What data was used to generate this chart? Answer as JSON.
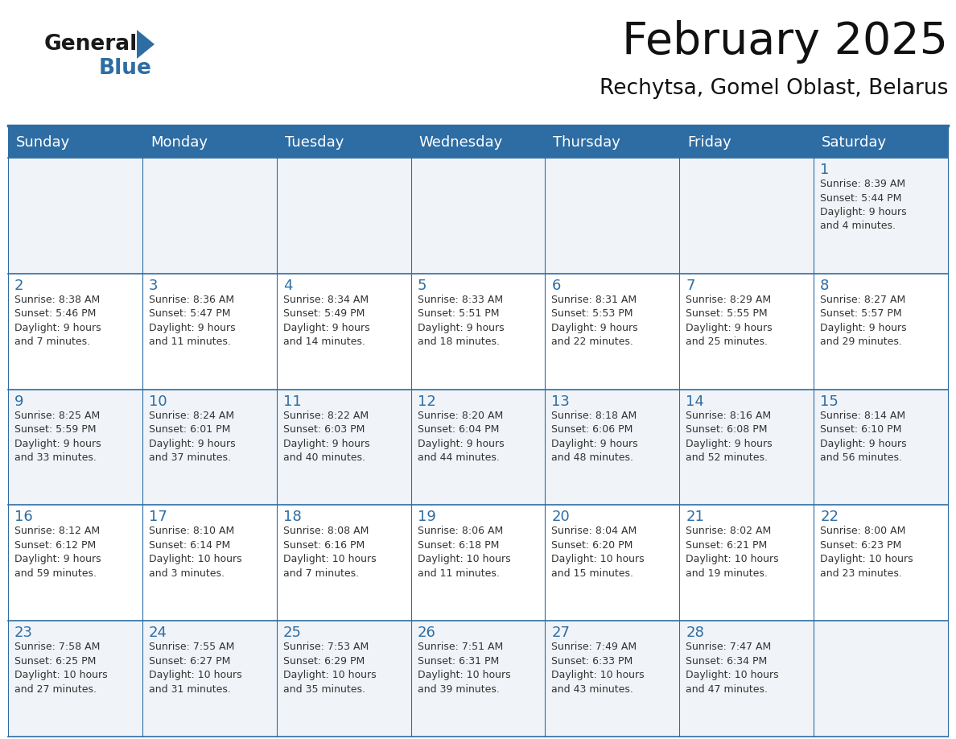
{
  "title": "February 2025",
  "subtitle": "Rechytsa, Gomel Oblast, Belarus",
  "days_of_week": [
    "Sunday",
    "Monday",
    "Tuesday",
    "Wednesday",
    "Thursday",
    "Friday",
    "Saturday"
  ],
  "header_bg": "#2E6DA4",
  "header_text": "#FFFFFF",
  "cell_bg_odd": "#F0F4F8",
  "cell_bg_even": "#FFFFFF",
  "border_color": "#2E6DA4",
  "title_color": "#1a1a1a",
  "subtitle_color": "#1a1a1a",
  "day_number_color": "#2E6DA4",
  "cell_text_color": "#333333",
  "calendar_data": [
    [
      null,
      null,
      null,
      null,
      null,
      null,
      {
        "day": 1,
        "sunrise": "8:39 AM",
        "sunset": "5:44 PM",
        "daylight": "9 hours",
        "daylight2": "and 4 minutes."
      }
    ],
    [
      {
        "day": 2,
        "sunrise": "8:38 AM",
        "sunset": "5:46 PM",
        "daylight": "9 hours",
        "daylight2": "and 7 minutes."
      },
      {
        "day": 3,
        "sunrise": "8:36 AM",
        "sunset": "5:47 PM",
        "daylight": "9 hours",
        "daylight2": "and 11 minutes."
      },
      {
        "day": 4,
        "sunrise": "8:34 AM",
        "sunset": "5:49 PM",
        "daylight": "9 hours",
        "daylight2": "and 14 minutes."
      },
      {
        "day": 5,
        "sunrise": "8:33 AM",
        "sunset": "5:51 PM",
        "daylight": "9 hours",
        "daylight2": "and 18 minutes."
      },
      {
        "day": 6,
        "sunrise": "8:31 AM",
        "sunset": "5:53 PM",
        "daylight": "9 hours",
        "daylight2": "and 22 minutes."
      },
      {
        "day": 7,
        "sunrise": "8:29 AM",
        "sunset": "5:55 PM",
        "daylight": "9 hours",
        "daylight2": "and 25 minutes."
      },
      {
        "day": 8,
        "sunrise": "8:27 AM",
        "sunset": "5:57 PM",
        "daylight": "9 hours",
        "daylight2": "and 29 minutes."
      }
    ],
    [
      {
        "day": 9,
        "sunrise": "8:25 AM",
        "sunset": "5:59 PM",
        "daylight": "9 hours",
        "daylight2": "and 33 minutes."
      },
      {
        "day": 10,
        "sunrise": "8:24 AM",
        "sunset": "6:01 PM",
        "daylight": "9 hours",
        "daylight2": "and 37 minutes."
      },
      {
        "day": 11,
        "sunrise": "8:22 AM",
        "sunset": "6:03 PM",
        "daylight": "9 hours",
        "daylight2": "and 40 minutes."
      },
      {
        "day": 12,
        "sunrise": "8:20 AM",
        "sunset": "6:04 PM",
        "daylight": "9 hours",
        "daylight2": "and 44 minutes."
      },
      {
        "day": 13,
        "sunrise": "8:18 AM",
        "sunset": "6:06 PM",
        "daylight": "9 hours",
        "daylight2": "and 48 minutes."
      },
      {
        "day": 14,
        "sunrise": "8:16 AM",
        "sunset": "6:08 PM",
        "daylight": "9 hours",
        "daylight2": "and 52 minutes."
      },
      {
        "day": 15,
        "sunrise": "8:14 AM",
        "sunset": "6:10 PM",
        "daylight": "9 hours",
        "daylight2": "and 56 minutes."
      }
    ],
    [
      {
        "day": 16,
        "sunrise": "8:12 AM",
        "sunset": "6:12 PM",
        "daylight": "9 hours",
        "daylight2": "and 59 minutes."
      },
      {
        "day": 17,
        "sunrise": "8:10 AM",
        "sunset": "6:14 PM",
        "daylight": "10 hours",
        "daylight2": "and 3 minutes."
      },
      {
        "day": 18,
        "sunrise": "8:08 AM",
        "sunset": "6:16 PM",
        "daylight": "10 hours",
        "daylight2": "and 7 minutes."
      },
      {
        "day": 19,
        "sunrise": "8:06 AM",
        "sunset": "6:18 PM",
        "daylight": "10 hours",
        "daylight2": "and 11 minutes."
      },
      {
        "day": 20,
        "sunrise": "8:04 AM",
        "sunset": "6:20 PM",
        "daylight": "10 hours",
        "daylight2": "and 15 minutes."
      },
      {
        "day": 21,
        "sunrise": "8:02 AM",
        "sunset": "6:21 PM",
        "daylight": "10 hours",
        "daylight2": "and 19 minutes."
      },
      {
        "day": 22,
        "sunrise": "8:00 AM",
        "sunset": "6:23 PM",
        "daylight": "10 hours",
        "daylight2": "and 23 minutes."
      }
    ],
    [
      {
        "day": 23,
        "sunrise": "7:58 AM",
        "sunset": "6:25 PM",
        "daylight": "10 hours",
        "daylight2": "and 27 minutes."
      },
      {
        "day": 24,
        "sunrise": "7:55 AM",
        "sunset": "6:27 PM",
        "daylight": "10 hours",
        "daylight2": "and 31 minutes."
      },
      {
        "day": 25,
        "sunrise": "7:53 AM",
        "sunset": "6:29 PM",
        "daylight": "10 hours",
        "daylight2": "and 35 minutes."
      },
      {
        "day": 26,
        "sunrise": "7:51 AM",
        "sunset": "6:31 PM",
        "daylight": "10 hours",
        "daylight2": "and 39 minutes."
      },
      {
        "day": 27,
        "sunrise": "7:49 AM",
        "sunset": "6:33 PM",
        "daylight": "10 hours",
        "daylight2": "and 43 minutes."
      },
      {
        "day": 28,
        "sunrise": "7:47 AM",
        "sunset": "6:34 PM",
        "daylight": "10 hours",
        "daylight2": "and 47 minutes."
      },
      null
    ]
  ]
}
